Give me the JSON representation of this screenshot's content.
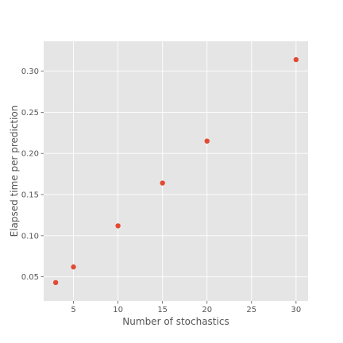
{
  "chart_data": {
    "type": "scatter",
    "title": "",
    "xlabel": "Number of stochastics",
    "ylabel": "Elapsed time per prediction",
    "x": [
      3,
      5,
      10,
      15,
      20,
      30
    ],
    "y": [
      0.043,
      0.062,
      0.112,
      0.164,
      0.215,
      0.314
    ],
    "xlim": [
      1.65,
      31.35
    ],
    "ylim": [
      0.0207,
      0.3363
    ],
    "xticks": [
      5,
      10,
      15,
      20,
      25,
      30
    ],
    "xtick_labels": [
      "5",
      "10",
      "15",
      "20",
      "25",
      "30"
    ],
    "yticks": [
      0.05,
      0.1,
      0.15,
      0.2,
      0.25,
      0.3
    ],
    "ytick_labels": [
      "0.05",
      "0.10",
      "0.15",
      "0.20",
      "0.25",
      "0.30"
    ],
    "grid": true,
    "colors": {
      "background": "#E5E5E5",
      "grid": "#FFFFFF",
      "marker": "#E24A33",
      "text": "#555555"
    }
  }
}
